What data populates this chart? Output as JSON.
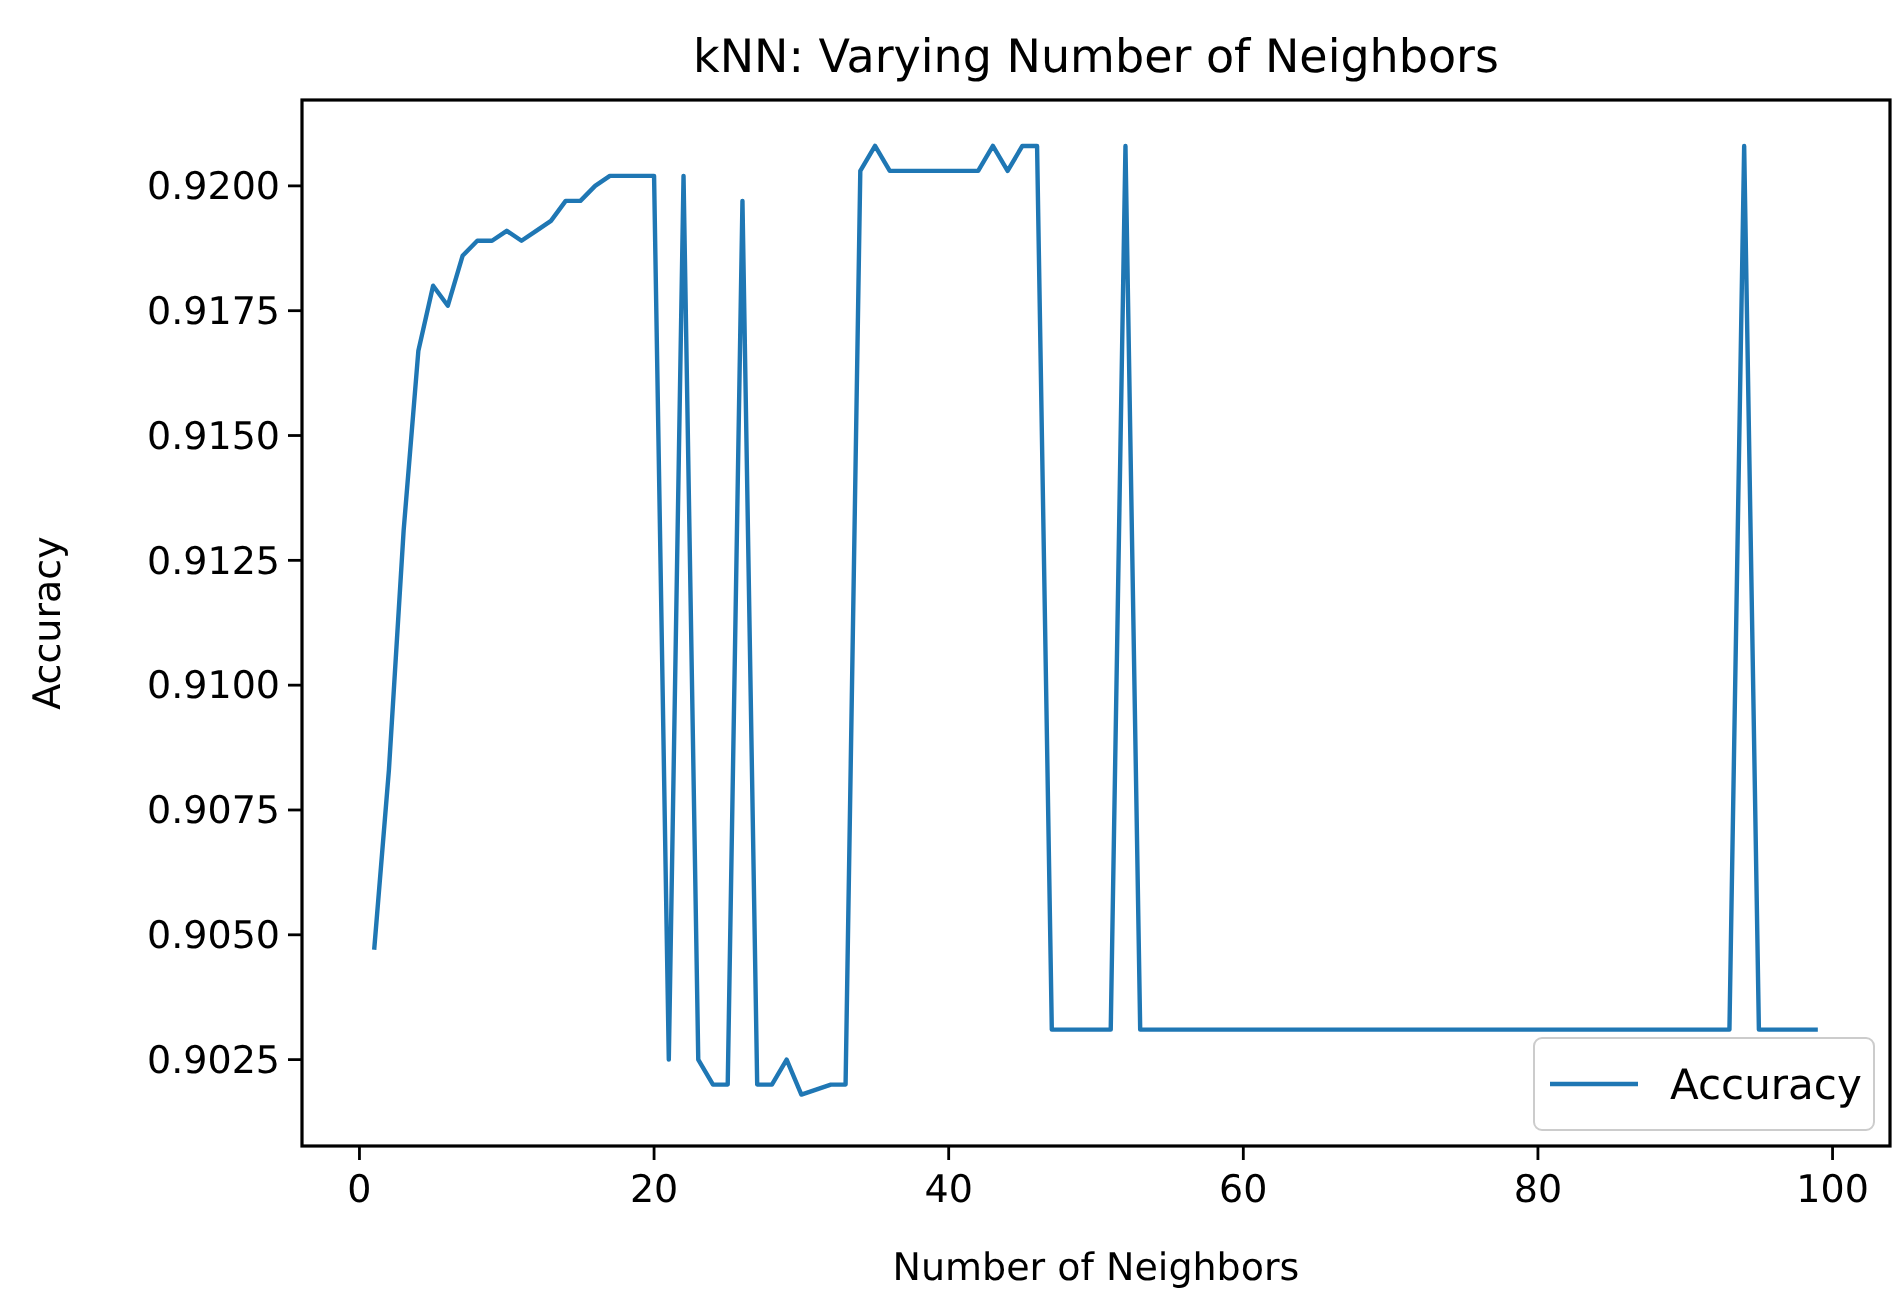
{
  "chart_data": {
    "type": "line",
    "title": "kNN: Varying Number of Neighbors",
    "xlabel": "Number of Neighbors",
    "ylabel": "Accuracy",
    "x": [
      1,
      2,
      3,
      4,
      5,
      6,
      7,
      8,
      9,
      10,
      11,
      12,
      13,
      14,
      15,
      16,
      17,
      18,
      19,
      20,
      21,
      22,
      23,
      24,
      25,
      26,
      27,
      28,
      29,
      30,
      31,
      32,
      33,
      34,
      35,
      36,
      37,
      38,
      39,
      40,
      41,
      42,
      43,
      44,
      45,
      46,
      47,
      48,
      49,
      50,
      51,
      52,
      53,
      54,
      55,
      56,
      57,
      58,
      59,
      60,
      61,
      62,
      63,
      64,
      65,
      66,
      67,
      68,
      69,
      70,
      71,
      72,
      73,
      74,
      75,
      76,
      77,
      78,
      79,
      80,
      81,
      82,
      83,
      84,
      85,
      86,
      87,
      88,
      89,
      90,
      91,
      92,
      93,
      94,
      95,
      96,
      97,
      98,
      99
    ],
    "series": [
      {
        "name": "Accuracy",
        "color": "#1f77b4",
        "values": [
          0.9047,
          0.9083,
          0.9131,
          0.9167,
          0.918,
          0.9176,
          0.9186,
          0.9189,
          0.9189,
          0.9191,
          0.9189,
          0.9191,
          0.9193,
          0.9197,
          0.9197,
          0.92,
          0.9202,
          0.9202,
          0.9202,
          0.9202,
          0.9025,
          0.9202,
          0.9025,
          0.902,
          0.902,
          0.9197,
          0.902,
          0.902,
          0.9025,
          0.9018,
          0.9019,
          0.902,
          0.902,
          0.9203,
          0.9208,
          0.9203,
          0.9203,
          0.9203,
          0.9203,
          0.9203,
          0.9203,
          0.9203,
          0.9208,
          0.9203,
          0.9208,
          0.9208,
          0.9031,
          0.9031,
          0.9031,
          0.9031,
          0.9031,
          0.9208,
          0.9031,
          0.9031,
          0.9031,
          0.9031,
          0.9031,
          0.9031,
          0.9031,
          0.9031,
          0.9031,
          0.9031,
          0.9031,
          0.9031,
          0.9031,
          0.9031,
          0.9031,
          0.9031,
          0.9031,
          0.9031,
          0.9031,
          0.9031,
          0.9031,
          0.9031,
          0.9031,
          0.9031,
          0.9031,
          0.9031,
          0.9031,
          0.9031,
          0.9031,
          0.9031,
          0.9031,
          0.9031,
          0.9031,
          0.9031,
          0.9031,
          0.9031,
          0.9031,
          0.9031,
          0.9031,
          0.9031,
          0.9031,
          0.9208,
          0.9031,
          0.9031,
          0.9031,
          0.9031,
          0.9031
        ]
      }
    ],
    "xlim": [
      -3.9,
      103.9
    ],
    "ylim": [
      0.90077,
      0.92172
    ],
    "xticks": [
      0,
      20,
      40,
      60,
      80,
      100
    ],
    "yticks": [
      {
        "value": 0.9025,
        "label": "0.9025"
      },
      {
        "value": 0.905,
        "label": "0.9050"
      },
      {
        "value": 0.9075,
        "label": "0.9075"
      },
      {
        "value": 0.91,
        "label": "0.9100"
      },
      {
        "value": 0.9125,
        "label": "0.9125"
      },
      {
        "value": 0.915,
        "label": "0.9150"
      },
      {
        "value": 0.9175,
        "label": "0.9175"
      },
      {
        "value": 0.92,
        "label": "0.9200"
      }
    ],
    "legend": "bottom right",
    "grid": false,
    "marker": "none",
    "line_style": "solid"
  }
}
